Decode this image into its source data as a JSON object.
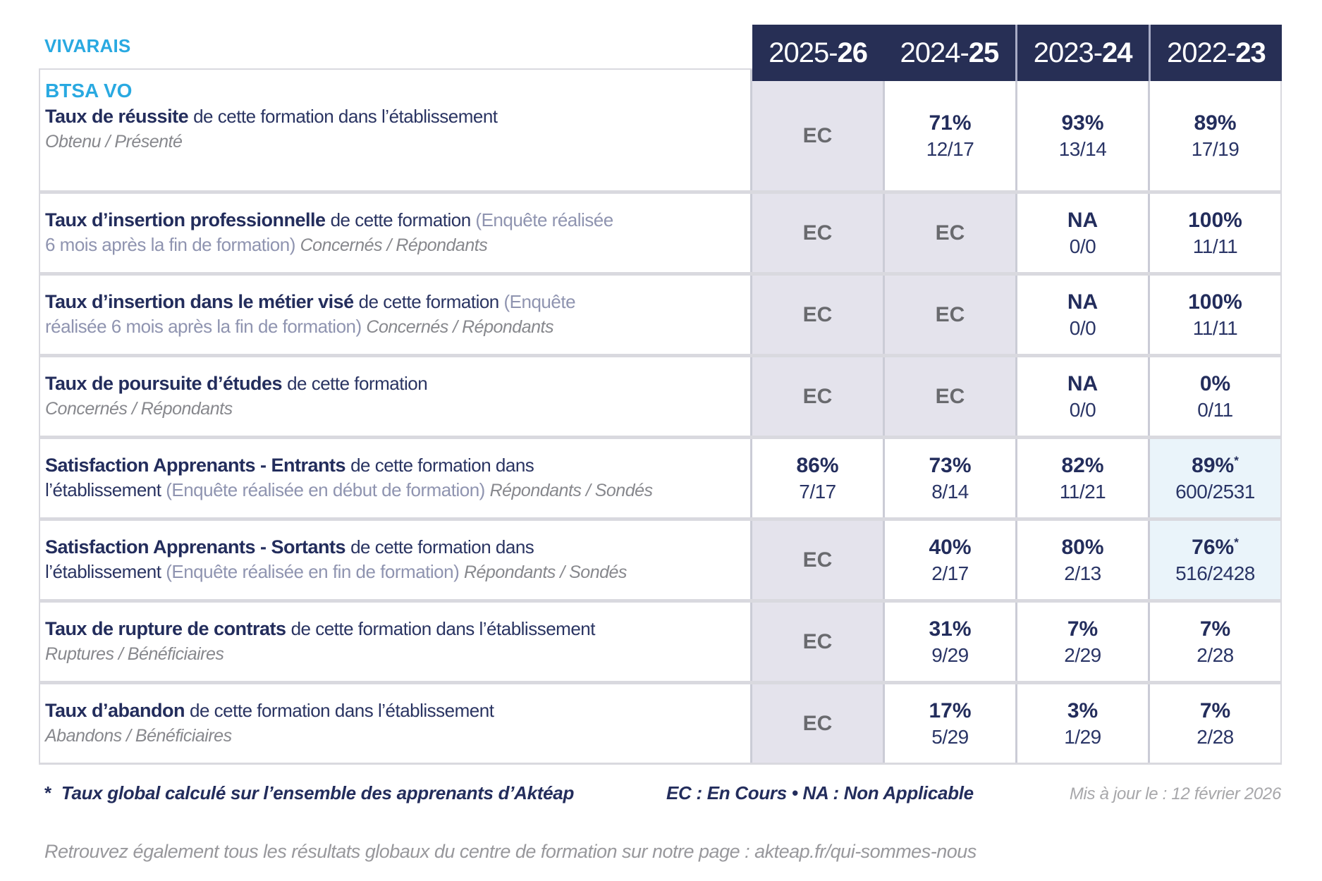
{
  "brand": {
    "name": "VIVARAIS"
  },
  "colors": {
    "accent_blue": "#29A9E1",
    "header_navy": "#272F55",
    "text_navy": "#232D5C",
    "ec_gray": "#696A6E",
    "ec_background": "#E4E3EC",
    "highlight_background": "#EAF4FA"
  },
  "header": {
    "years": [
      {
        "pre": "2025-",
        "bold": "26"
      },
      {
        "pre": "2024-",
        "bold": "25"
      },
      {
        "pre": "2023-",
        "bold": "24"
      },
      {
        "pre": "2022-",
        "bold": "23"
      }
    ]
  },
  "table": {
    "rows": [
      {
        "title": "BTSA VO",
        "label_lines": [
          [
            {
              "t": "Taux de réussite ",
              "s": "bold"
            },
            {
              "t": "de cette formation dans l’établissement",
              "s": "normal"
            }
          ],
          [
            {
              "t": "Obtenu / Présenté",
              "s": "italic"
            }
          ]
        ],
        "cells": [
          {
            "type": "ec",
            "text": "EC"
          },
          {
            "type": "value",
            "pct": "71%",
            "frac": "12/17"
          },
          {
            "type": "value",
            "pct": "93%",
            "frac": "13/14"
          },
          {
            "type": "value",
            "pct": "89%",
            "frac": "17/19"
          }
        ]
      },
      {
        "label_lines": [
          [
            {
              "t": "Taux d’insertion professionnelle ",
              "s": "bold"
            },
            {
              "t": "de cette formation ",
              "s": "normal"
            },
            {
              "t": "(Enquête réalisée",
              "s": "paren"
            }
          ],
          [
            {
              "t": "6 mois après la fin de formation) ",
              "s": "paren"
            },
            {
              "t": "Concernés / Répondants",
              "s": "italic"
            }
          ]
        ],
        "cells": [
          {
            "type": "ec",
            "text": "EC"
          },
          {
            "type": "ec",
            "text": "EC"
          },
          {
            "type": "value",
            "pct": "NA",
            "frac": "0/0"
          },
          {
            "type": "value",
            "pct": "100%",
            "frac": "11/11"
          }
        ]
      },
      {
        "label_lines": [
          [
            {
              "t": "Taux d’insertion dans le métier visé ",
              "s": "bold"
            },
            {
              "t": "de cette formation ",
              "s": "normal"
            },
            {
              "t": "(Enquête",
              "s": "paren"
            }
          ],
          [
            {
              "t": "réalisée 6 mois après la fin de formation) ",
              "s": "paren"
            },
            {
              "t": "Concernés / Répondants",
              "s": "italic"
            }
          ]
        ],
        "cells": [
          {
            "type": "ec",
            "text": "EC"
          },
          {
            "type": "ec",
            "text": "EC"
          },
          {
            "type": "value",
            "pct": "NA",
            "frac": "0/0"
          },
          {
            "type": "value",
            "pct": "100%",
            "frac": "11/11"
          }
        ]
      },
      {
        "label_lines": [
          [
            {
              "t": "Taux de poursuite d’études ",
              "s": "bold"
            },
            {
              "t": "de cette formation",
              "s": "normal"
            }
          ],
          [
            {
              "t": "Concernés / Répondants",
              "s": "italic"
            }
          ]
        ],
        "cells": [
          {
            "type": "ec",
            "text": "EC"
          },
          {
            "type": "ec",
            "text": "EC"
          },
          {
            "type": "value",
            "pct": "NA",
            "frac": "0/0"
          },
          {
            "type": "value",
            "pct": "0%",
            "frac": "0/11"
          }
        ]
      },
      {
        "label_lines": [
          [
            {
              "t": "Satisfaction Apprenants - Entrants ",
              "s": "bold"
            },
            {
              "t": "de cette formation dans",
              "s": "normal"
            }
          ],
          [
            {
              "t": "l’établissement ",
              "s": "normal"
            },
            {
              "t": "(Enquête réalisée en début de formation) ",
              "s": "paren"
            },
            {
              "t": "Répondants / Sondés",
              "s": "italic"
            }
          ]
        ],
        "cells": [
          {
            "type": "value",
            "pct": "86%",
            "frac": "7/17"
          },
          {
            "type": "value",
            "pct": "73%",
            "frac": "8/14"
          },
          {
            "type": "value",
            "pct": "82%",
            "frac": "11/21"
          },
          {
            "type": "value",
            "pct": "89%",
            "frac": "600/2531",
            "star": true,
            "highlight": true
          }
        ]
      },
      {
        "label_lines": [
          [
            {
              "t": "Satisfaction Apprenants - Sortants ",
              "s": "bold"
            },
            {
              "t": "de cette formation dans",
              "s": "normal"
            }
          ],
          [
            {
              "t": "l’établissement ",
              "s": "normal"
            },
            {
              "t": "(Enquête réalisée en fin de formation) ",
              "s": "paren"
            },
            {
              "t": "Répondants / Sondés",
              "s": "italic"
            }
          ]
        ],
        "cells": [
          {
            "type": "ec",
            "text": "EC"
          },
          {
            "type": "value",
            "pct": "40%",
            "frac": "2/17"
          },
          {
            "type": "value",
            "pct": "80%",
            "frac": "2/13"
          },
          {
            "type": "value",
            "pct": "76%",
            "frac": "516/2428",
            "star": true,
            "highlight": true
          }
        ]
      },
      {
        "label_lines": [
          [
            {
              "t": "Taux de rupture de contrats ",
              "s": "bold"
            },
            {
              "t": "de cette formation dans l’établissement",
              "s": "normal"
            }
          ],
          [
            {
              "t": "Ruptures / Bénéficiaires",
              "s": "italic"
            }
          ]
        ],
        "cells": [
          {
            "type": "ec",
            "text": "EC"
          },
          {
            "type": "value",
            "pct": "31%",
            "frac": "9/29"
          },
          {
            "type": "value",
            "pct": "7%",
            "frac": "2/29"
          },
          {
            "type": "value",
            "pct": "7%",
            "frac": "2/28"
          }
        ]
      },
      {
        "label_lines": [
          [
            {
              "t": "Taux d’abandon ",
              "s": "bold"
            },
            {
              "t": "de cette formation dans l’établissement",
              "s": "normal"
            }
          ],
          [
            {
              "t": "Abandons / Bénéficiaires",
              "s": "italic"
            }
          ]
        ],
        "cells": [
          {
            "type": "ec",
            "text": "EC"
          },
          {
            "type": "value",
            "pct": "17%",
            "frac": "5/29"
          },
          {
            "type": "value",
            "pct": "3%",
            "frac": "1/29"
          },
          {
            "type": "value",
            "pct": "7%",
            "frac": "2/28"
          }
        ]
      }
    ]
  },
  "footer": {
    "footnote_star": "*",
    "footnote_text": "Taux global calculé sur l’ensemble des apprenants d’Aktéap",
    "legend": "EC : En Cours  •  NA : Non Applicable",
    "updated": "Mis à jour le : 12 février 2026",
    "bottom_note": "Retrouvez également tous les résultats globaux du centre de formation sur notre page : akteap.fr/qui-sommes-nous"
  },
  "misc": {
    "star": "*"
  }
}
